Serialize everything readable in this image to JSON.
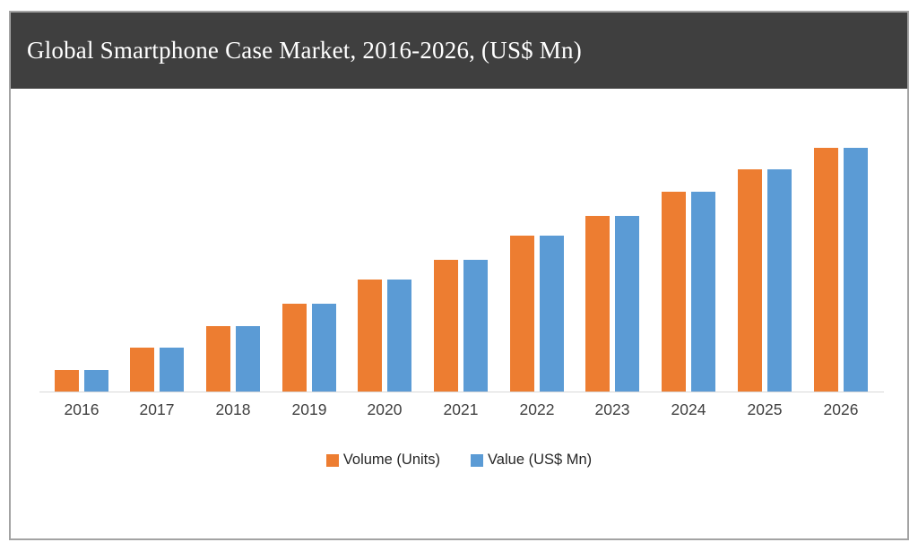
{
  "title": "Global Smartphone Case Market, 2016-2026, (US$ Mn)",
  "colors": {
    "volume_bar": "#ED7D31",
    "value_bar": "#5B9BD5",
    "title_bar_bg": "#3F3F3F",
    "title_text": "#FFFFFF",
    "frame_border": "#A3A3A3",
    "axis_line": "#D9D9D9",
    "x_label_text": "#404040",
    "legend_text": "#262626"
  },
  "chart_data": {
    "type": "bar",
    "title": "Global Smartphone Case Market, 2016-2026, (US$ Mn)",
    "categories": [
      "2016",
      "2017",
      "2018",
      "2019",
      "2020",
      "2021",
      "2022",
      "2023",
      "2024",
      "2025",
      "2026"
    ],
    "series": [
      {
        "name": "Volume (Units)",
        "color": "#ED7D31",
        "values": [
          9,
          18,
          27,
          36,
          46,
          54,
          64,
          72,
          82,
          91,
          100
        ]
      },
      {
        "name": "Value (US$ Mn)",
        "color": "#5B9BD5",
        "values": [
          9,
          18,
          27,
          36,
          46,
          54,
          64,
          72,
          82,
          91,
          100
        ]
      }
    ],
    "xlabel": "",
    "ylabel": "",
    "ylim": [
      0,
      105
    ],
    "value_scale": "relative units (chart shows no y-axis or data labels; values estimated from bar heights, 2026 = 100)",
    "grid": false,
    "y_axis_shown": false,
    "legend_position": "bottom-center"
  },
  "legend": {
    "items": [
      {
        "label": "Volume (Units)"
      },
      {
        "label": "Value (US$ Mn)"
      }
    ]
  }
}
